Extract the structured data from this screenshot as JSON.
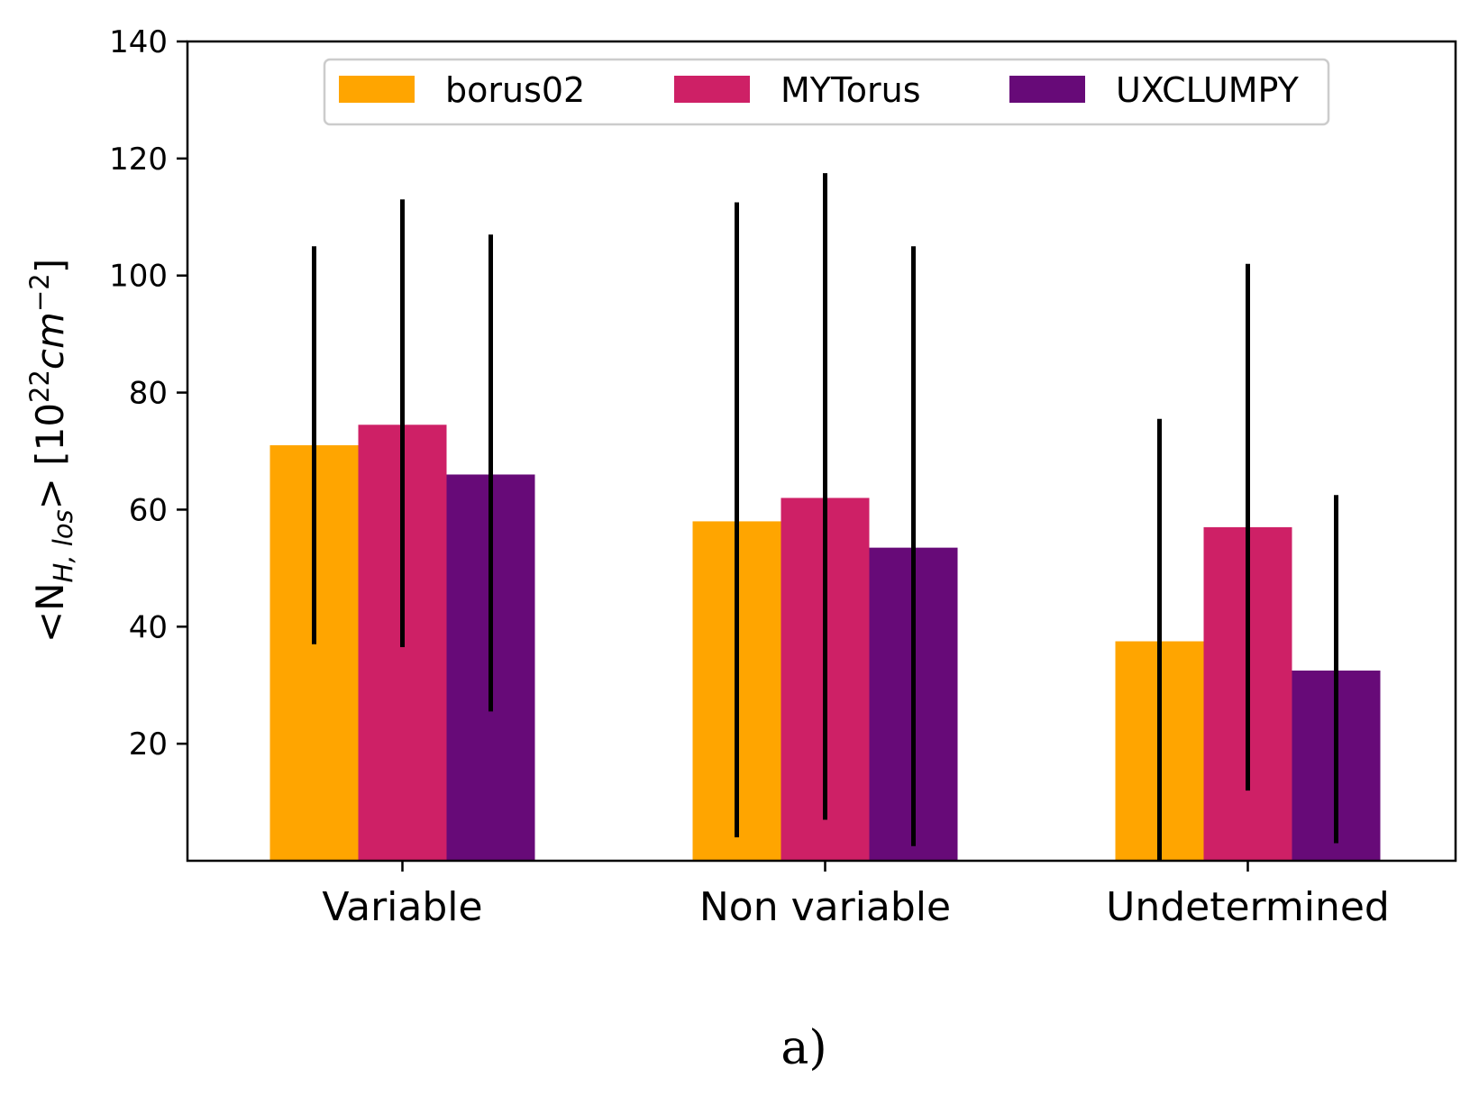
{
  "chart_data": {
    "type": "bar",
    "categories": [
      "Variable",
      "Non variable",
      "Undetermined"
    ],
    "series": [
      {
        "name": "borus02",
        "color": "#FFA500",
        "values": [
          71,
          58,
          37.5
        ],
        "err_low": [
          37,
          4,
          0
        ],
        "err_high": [
          105,
          112.5,
          75.5
        ]
      },
      {
        "name": "MYTorus",
        "color": "#CE2066",
        "values": [
          74.5,
          62,
          57
        ],
        "err_low": [
          36.5,
          7,
          12
        ],
        "err_high": [
          113,
          117.5,
          102
        ]
      },
      {
        "name": "UXCLUMPY",
        "color": "#670A78",
        "values": [
          66,
          53.5,
          32.5
        ],
        "err_low": [
          25.5,
          2.5,
          3
        ],
        "err_high": [
          107,
          105,
          62.5
        ]
      }
    ],
    "ylabel": {
      "prefix": "<N",
      "subscript": "H, los",
      "suffix": ">  [10",
      "exponent": "22",
      "unit": "cm",
      "unit_exponent": "−2",
      "close": "]"
    },
    "ylim": [
      0,
      140
    ],
    "yticks": [
      "20",
      "40",
      "60",
      "80",
      "100",
      "120",
      "140"
    ],
    "legend_position": "top-center",
    "grid": false,
    "caption": "a)"
  }
}
